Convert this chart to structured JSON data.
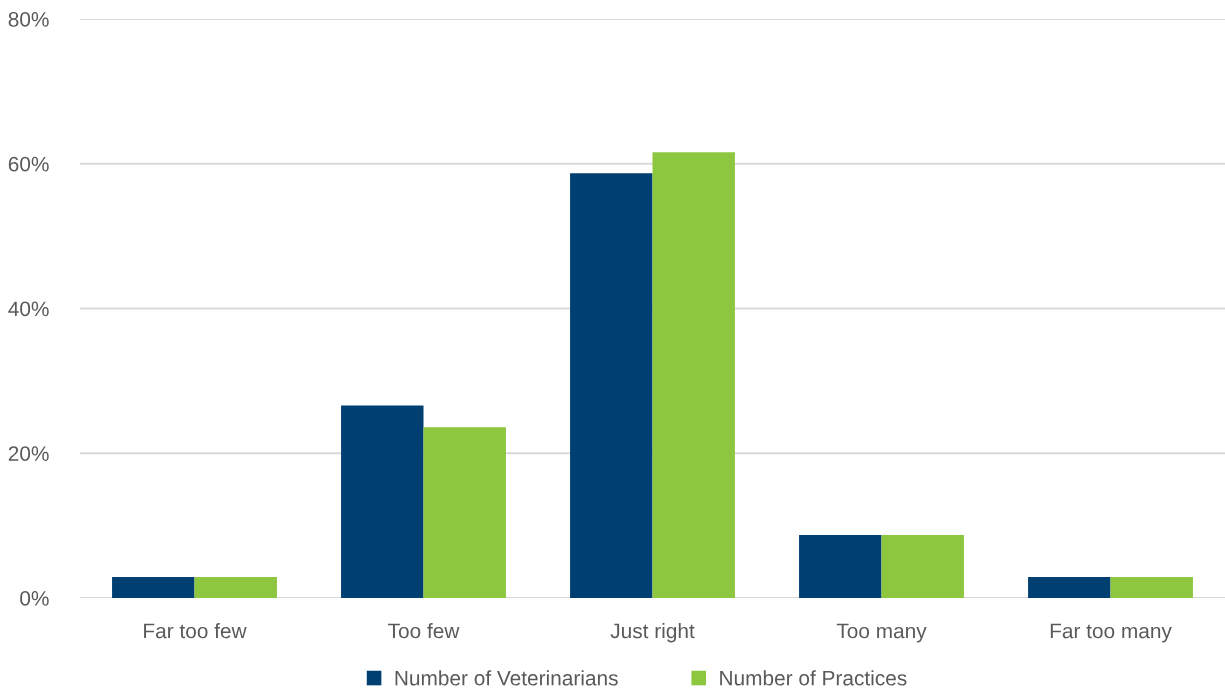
{
  "chart_data": {
    "type": "bar",
    "categories": [
      "Far too few",
      "Too few",
      "Just right",
      "Too many",
      "Far too many"
    ],
    "series": [
      {
        "name": "Number of Veterinarians",
        "color": "#003f72",
        "values": [
          2.9,
          26.6,
          58.7,
          8.7,
          2.9
        ]
      },
      {
        "name": "Number of Practices",
        "color": "#8dc63f",
        "values": [
          2.9,
          23.6,
          61.6,
          8.7,
          2.9
        ]
      }
    ],
    "ylim": [
      0,
      80
    ],
    "yticks": [
      {
        "value": 0,
        "label": "0%"
      },
      {
        "value": 20,
        "label": "20%"
      },
      {
        "value": 40,
        "label": "40%"
      },
      {
        "value": 60,
        "label": "60%"
      },
      {
        "value": 80,
        "label": "80%"
      }
    ],
    "grid": "y",
    "legend": "bottom"
  }
}
